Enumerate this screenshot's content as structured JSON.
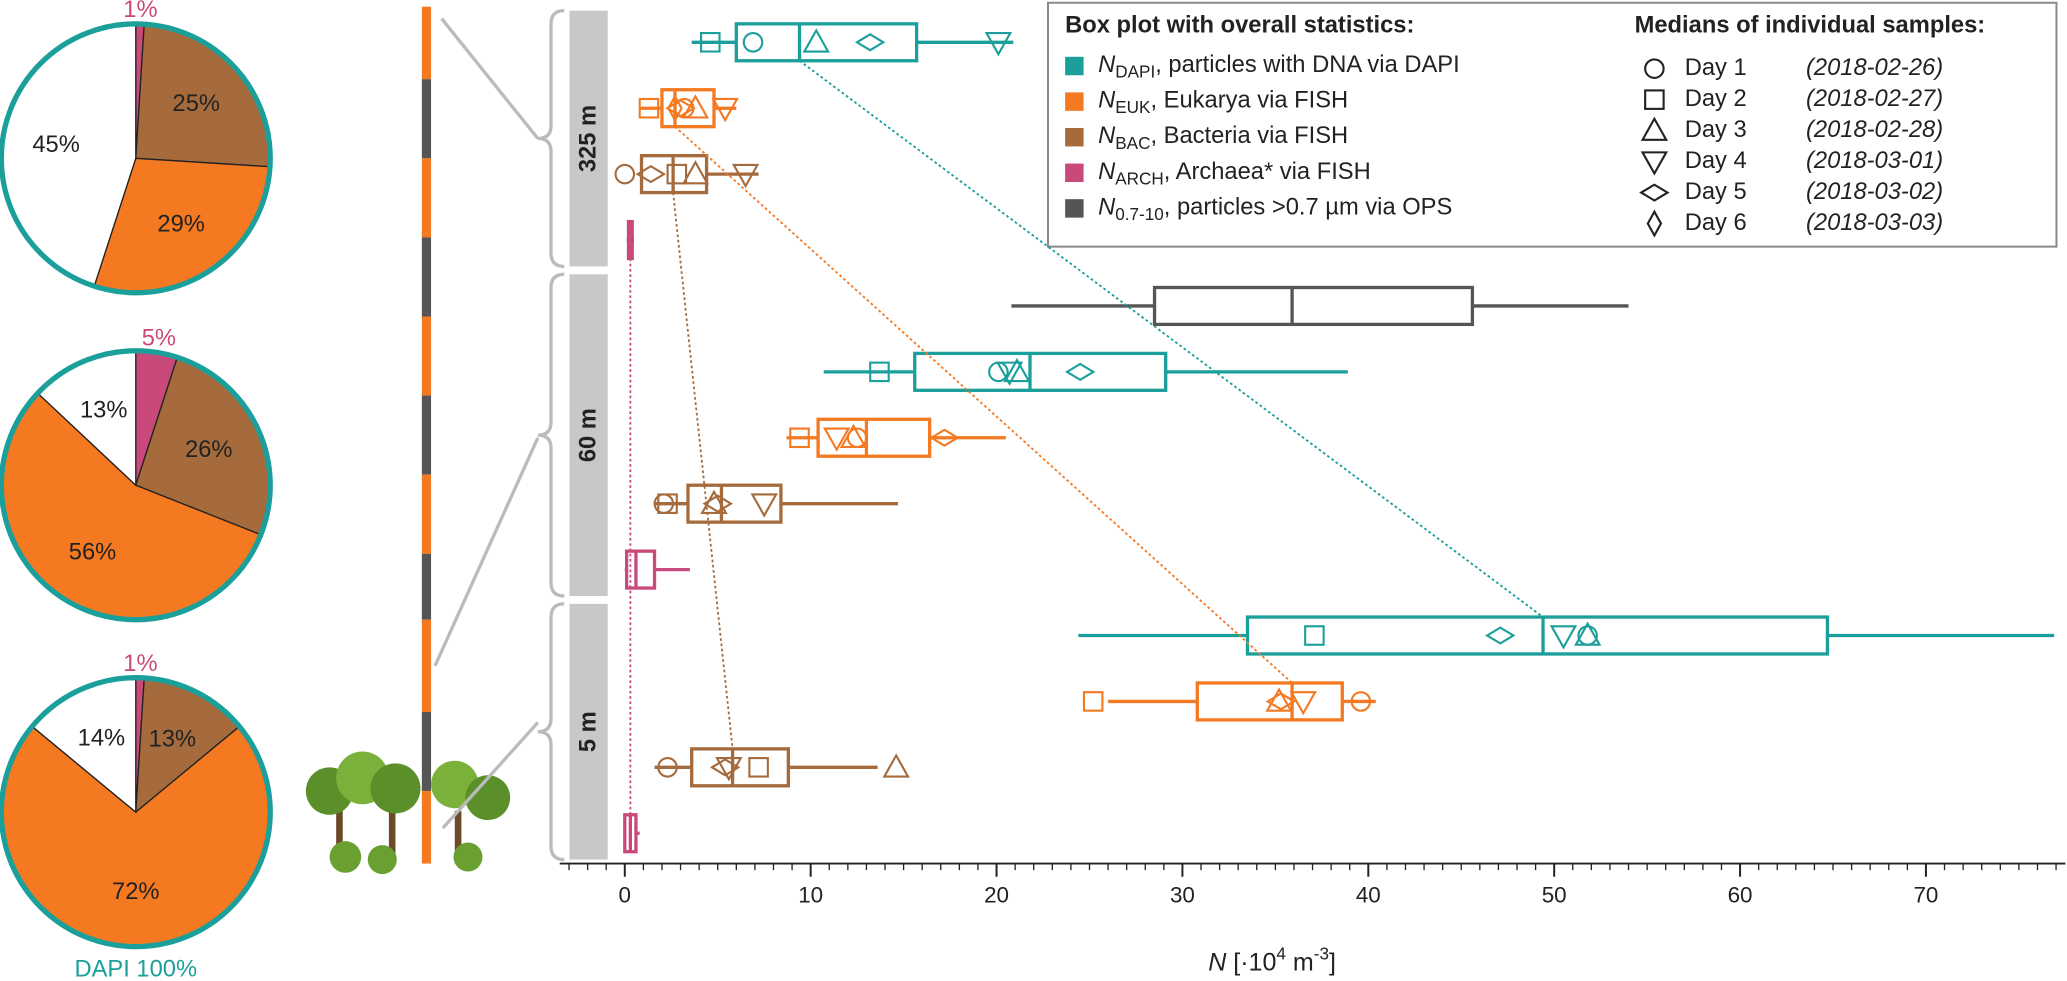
{
  "chart_data": [
    {
      "type": "pie",
      "values": [
        1,
        25,
        29,
        45
      ],
      "value_labels": [
        "1%",
        "25%",
        "29%",
        "45%"
      ],
      "colors": [
        "#c94a7a",
        "#a56b3c",
        "#f47920",
        "#ffffff"
      ],
      "outline": "#1a9f9a"
    },
    {
      "type": "pie",
      "values": [
        5,
        26,
        56,
        13
      ],
      "value_labels": [
        "5%",
        "26%",
        "56%",
        "13%"
      ],
      "colors": [
        "#c94a7a",
        "#a56b3c",
        "#f47920",
        "#ffffff"
      ],
      "outline": "#1a9f9a"
    },
    {
      "type": "pie",
      "values": [
        1,
        13,
        72,
        14
      ],
      "value_labels": [
        "1%",
        "13%",
        "72%",
        "14%"
      ],
      "colors": [
        "#c94a7a",
        "#a56b3c",
        "#f47920",
        "#ffffff"
      ],
      "outline": "#1a9f9a",
      "caption": "DAPI 100%"
    },
    {
      "type": "box",
      "legend_title": "Box plot with overall statistics:",
      "groups": [
        "325 m",
        "60 m",
        "5 m"
      ],
      "series": [
        {
          "symbol": "N",
          "subscript": "DAPI",
          "text": ", particles with DNA via DAPI",
          "color": "#1a9f9a",
          "boxes": [
            {
              "min": 3.6,
              "q1": 6.0,
              "median": 9.4,
              "q3": 15.7,
              "max": 20.9,
              "days": [
                6.9,
                4.6,
                10.3,
                20.1,
                13.2,
                null
              ]
            },
            {
              "min": 10.7,
              "q1": 15.6,
              "median": 21.8,
              "q3": 29.1,
              "max": 38.9,
              "days": [
                20.1,
                13.7,
                21.1,
                20.7,
                24.5,
                null
              ]
            },
            {
              "min": 24.4,
              "q1": 33.5,
              "median": 49.4,
              "q3": 64.7,
              "max": 76.9,
              "days": [
                51.8,
                37.1,
                51.8,
                50.5,
                47.1,
                null
              ]
            }
          ]
        },
        {
          "symbol": "N",
          "subscript": "EUK",
          "text": ", Eukarya via FISH",
          "color": "#f47920",
          "boxes": [
            {
              "min": 0.8,
              "q1": 2.0,
              "median": 2.7,
              "q3": 4.8,
              "max": 6.0,
              "days": [
                3.2,
                1.3,
                3.8,
                5.4,
                3.0,
                2.7
              ]
            },
            {
              "min": 8.7,
              "q1": 10.4,
              "median": 13.0,
              "q3": 16.4,
              "max": 20.5,
              "days": [
                12.5,
                9.4,
                12.3,
                11.4,
                17.2,
                null
              ]
            },
            {
              "min": 26.0,
              "q1": 30.8,
              "median": 35.9,
              "q3": 38.6,
              "max": 40.4,
              "days": [
                39.6,
                25.2,
                35.2,
                36.5,
                35.3,
                null
              ]
            }
          ]
        },
        {
          "symbol": "N",
          "subscript": "BAC",
          "text": ", Bacteria via FISH",
          "color": "#a56b3c",
          "boxes": [
            {
              "min": 0.9,
              "q1": 0.9,
              "median": 2.6,
              "q3": 4.4,
              "max": 7.2,
              "days": [
                0.0,
                2.8,
                3.8,
                6.5,
                1.4,
                null
              ]
            },
            {
              "min": 1.6,
              "q1": 3.4,
              "median": 5.2,
              "q3": 8.4,
              "max": 14.7,
              "days": [
                2.1,
                2.3,
                4.8,
                7.5,
                5.0,
                null
              ]
            },
            {
              "min": 1.6,
              "q1": 3.6,
              "median": 5.8,
              "q3": 8.8,
              "max": 13.6,
              "days": [
                2.3,
                7.2,
                14.6,
                5.6,
                5.4,
                null
              ]
            }
          ]
        },
        {
          "symbol": "N",
          "subscript": "ARCH",
          "text": ", Archaea* via FISH",
          "color": "#c94a7a",
          "boxes": [
            {
              "min": 0.1,
              "q1": 0.2,
              "median": 0.3,
              "q3": 0.4,
              "max": 0.5
            },
            {
              "min": 0.0,
              "q1": 0.1,
              "median": 0.6,
              "q3": 1.6,
              "max": 3.5
            },
            {
              "min": 0.0,
              "q1": 0.0,
              "median": 0.3,
              "q3": 0.6,
              "max": 0.8
            }
          ]
        },
        {
          "symbol": "N",
          "subscript": "0.7-10",
          "text": ", particles >0.7 µm via OPS",
          "color": "#555555",
          "boxes": [
            null,
            {
              "min": 20.8,
              "q1": 28.5,
              "median": 35.9,
              "q3": 45.6,
              "max": 54.0
            },
            null
          ]
        }
      ],
      "days_title": "Medians of individual samples:",
      "days": [
        "Day 1",
        "Day 2",
        "Day 3",
        "Day 4",
        "Day 5",
        "Day 6"
      ],
      "dates": [
        "(2018-02-26)",
        "(2018-02-27)",
        "(2018-02-28)",
        "(2018-03-01)",
        "(2018-03-02)",
        "(2018-03-03)"
      ],
      "xlabel": {
        "symbol": "N",
        "text1": " [·10",
        "sup1": "4",
        "text2": " m",
        "sup2": "-3",
        "text3": "]"
      },
      "xlim": [
        -3.5,
        77.5
      ],
      "xticks": [
        0,
        10,
        20,
        30,
        40,
        50,
        60,
        70
      ],
      "xminorticks": [
        -3,
        -2,
        -1,
        0,
        1,
        2,
        3,
        4,
        5,
        6,
        7,
        8,
        9,
        10,
        11,
        12,
        13,
        14,
        15,
        16,
        17,
        18,
        19,
        20,
        21,
        22,
        23,
        24,
        25,
        26,
        27,
        28,
        29,
        30,
        31,
        32,
        33,
        34,
        35,
        36,
        37,
        38,
        39,
        40,
        41,
        42,
        43,
        44,
        45,
        46,
        47,
        48,
        49,
        50,
        51,
        52,
        53,
        54,
        55,
        56,
        57,
        58,
        59,
        60,
        61,
        62,
        63,
        64,
        65,
        66,
        67,
        68,
        69,
        70,
        71,
        72,
        73,
        74,
        75,
        76,
        77
      ]
    }
  ]
}
